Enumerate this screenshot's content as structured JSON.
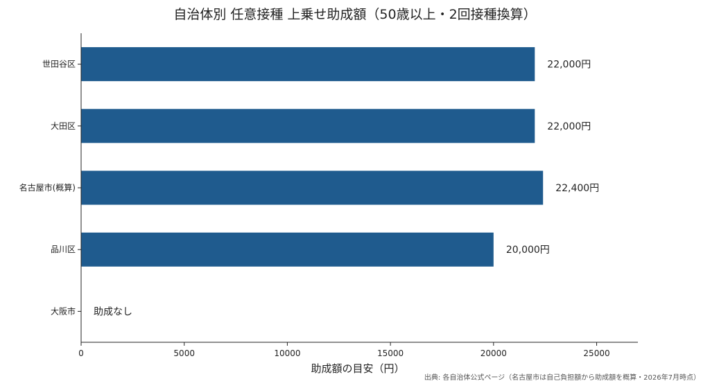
{
  "chart_data": {
    "type": "bar",
    "orientation": "horizontal",
    "title": "自治体別 任意接種 上乗せ助成額（50歳以上・2回接種換算）",
    "xlabel": "助成額の目安（円）",
    "ylabel": "",
    "categories": [
      "世田谷区",
      "大田区",
      "名古屋市(概算)",
      "品川区",
      "大阪市"
    ],
    "values": [
      22000,
      22000,
      22400,
      20000,
      0
    ],
    "data_labels": [
      "22,000円",
      "22,000円",
      "22,400円",
      "20,000円",
      "助成なし"
    ],
    "xlim": [
      0,
      27000
    ],
    "xticks": [
      0,
      5000,
      10000,
      15000,
      20000,
      25000
    ],
    "xtick_labels": [
      "0",
      "5000",
      "10000",
      "15000",
      "20000",
      "25000"
    ],
    "grid": false,
    "bar_color": "#1f5b8e",
    "source": "出典: 各自治体公式ページ（名古屋市は自己負担額から助成額を概算・2026年7月時点）"
  }
}
